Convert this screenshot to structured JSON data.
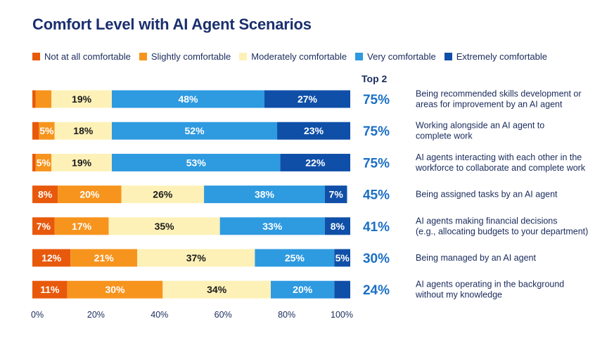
{
  "chart_data": {
    "type": "bar",
    "orientation": "horizontal-stacked-100",
    "title": "Comfort Level with AI Agent Scenarios",
    "top2_header": "Top 2",
    "legend_position": "top",
    "series": [
      {
        "name": "Not at all comfortable",
        "color": "#e8590c",
        "label_color": "#ffffff"
      },
      {
        "name": "Slightly comfortable",
        "color": "#f7941d",
        "label_color": "#ffffff"
      },
      {
        "name": "Moderately comfortable",
        "color": "#fdf1b8",
        "label_color": "#1a1a1a"
      },
      {
        "name": "Very comfortable",
        "color": "#2e9ae0",
        "label_color": "#ffffff"
      },
      {
        "name": "Extremely comfortable",
        "color": "#0f4fa8",
        "label_color": "#ffffff"
      }
    ],
    "rows": [
      {
        "label_lines": [
          "Being recommended skills development or",
          "areas for improvement by an AI agent"
        ],
        "values": [
          1,
          5,
          19,
          48,
          27
        ],
        "labels": [
          "",
          "",
          "19%",
          "48%",
          "27%"
        ],
        "top2": "75%"
      },
      {
        "label_lines": [
          "Working alongside an AI agent to",
          "complete work"
        ],
        "values": [
          2,
          5,
          18,
          52,
          23
        ],
        "labels": [
          "",
          "5%",
          "18%",
          "52%",
          "23%"
        ],
        "top2": "75%"
      },
      {
        "label_lines": [
          "AI agents interacting with each other in the",
          "workforce to collaborate and complete work"
        ],
        "values": [
          1,
          5,
          19,
          53,
          22
        ],
        "labels": [
          "",
          "5%",
          "19%",
          "53%",
          "22%"
        ],
        "top2": "75%"
      },
      {
        "label_lines": [
          "Being assigned tasks by an AI agent"
        ],
        "values": [
          8,
          20,
          26,
          38,
          7
        ],
        "labels": [
          "8%",
          "20%",
          "26%",
          "38%",
          "7%"
        ],
        "top2": "45%"
      },
      {
        "label_lines": [
          "AI agents making financial decisions",
          "(e.g., allocating budgets to your department)"
        ],
        "values": [
          7,
          17,
          35,
          33,
          8
        ],
        "labels": [
          "7%",
          "17%",
          "35%",
          "33%",
          "8%"
        ],
        "top2": "41%"
      },
      {
        "label_lines": [
          "Being managed by an AI agent"
        ],
        "values": [
          12,
          21,
          37,
          25,
          5
        ],
        "labels": [
          "12%",
          "21%",
          "37%",
          "25%",
          "5%"
        ],
        "top2": "30%"
      },
      {
        "label_lines": [
          "AI agents operating in the background",
          "without my knowledge"
        ],
        "values": [
          11,
          30,
          34,
          20,
          5
        ],
        "labels": [
          "11%",
          "30%",
          "34%",
          "20%",
          ""
        ],
        "top2": "24%"
      }
    ],
    "x_ticks": [
      "0%",
      "20%",
      "40%",
      "60%",
      "80%",
      "100%"
    ],
    "xlim": [
      0,
      100
    ],
    "grid": false
  }
}
